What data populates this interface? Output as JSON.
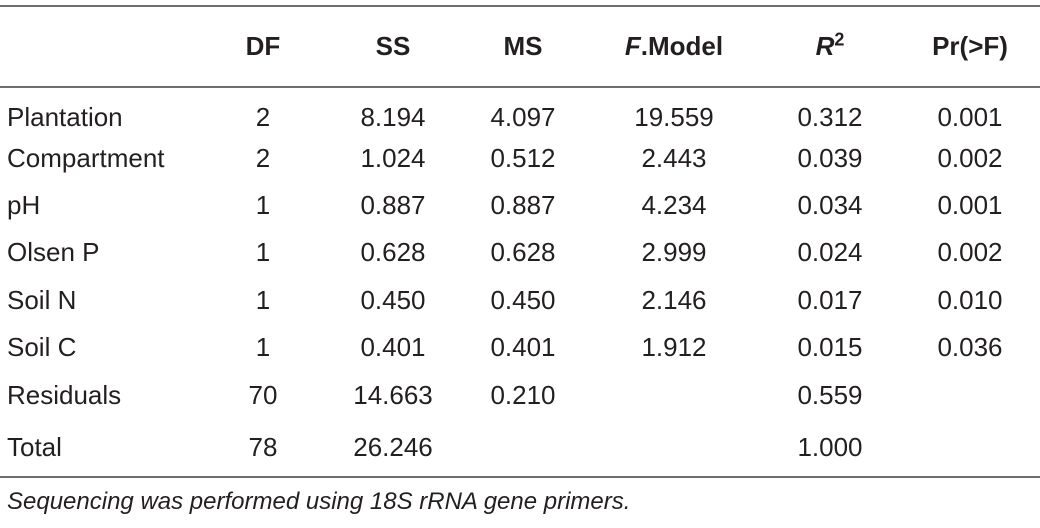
{
  "table": {
    "headers": {
      "stub": "",
      "df": "DF",
      "ss": "SS",
      "ms": "MS",
      "fmodel_italic": "F",
      "fmodel_rest": ".Model",
      "r2_base": "R",
      "r2_sup": "2",
      "pr": "Pr(>F)"
    },
    "rows": [
      {
        "term": "Plantation",
        "df": "2",
        "ss": "8.194",
        "ms": "4.097",
        "f": "19.559",
        "r2": "0.312",
        "p": "0.001"
      },
      {
        "term": "Compartment",
        "df": "2",
        "ss": "1.024",
        "ms": "0.512",
        "f": "2.443",
        "r2": "0.039",
        "p": "0.002"
      },
      {
        "term": "pH",
        "df": "1",
        "ss": "0.887",
        "ms": "0.887",
        "f": "4.234",
        "r2": "0.034",
        "p": "0.001"
      },
      {
        "term": "Olsen P",
        "df": "1",
        "ss": "0.628",
        "ms": "0.628",
        "f": "2.999",
        "r2": "0.024",
        "p": "0.002"
      },
      {
        "term": "Soil N",
        "df": "1",
        "ss": "0.450",
        "ms": "0.450",
        "f": "2.146",
        "r2": "0.017",
        "p": "0.010"
      },
      {
        "term": "Soil C",
        "df": "1",
        "ss": "0.401",
        "ms": "0.401",
        "f": "1.912",
        "r2": "0.015",
        "p": "0.036"
      },
      {
        "term": "Residuals",
        "df": "70",
        "ss": "14.663",
        "ms": "0.210",
        "f": "",
        "r2": "0.559",
        "p": ""
      },
      {
        "term": "Total",
        "df": "78",
        "ss": "26.246",
        "ms": "",
        "f": "",
        "r2": "1.000",
        "p": ""
      }
    ]
  },
  "footnote": "Sequencing was performed using 18S rRNA gene primers."
}
